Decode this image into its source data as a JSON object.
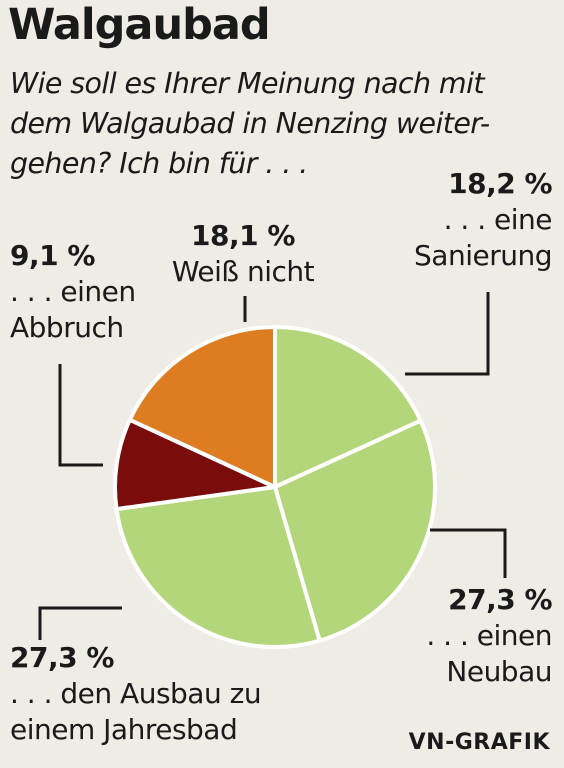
{
  "title": "Walgaubad",
  "question": "Wie soll es Ihrer Meinung nach mit dem Walgaubad in Nenzing weiter-gehen? Ich bin für . . .",
  "credit": "VN-GRAFIK",
  "chart_data": {
    "type": "pie",
    "title": "Walgaubad",
    "subtitle": "Wie soll es Ihrer Meinung nach mit dem Walgaubad in Nenzing weiter-gehen? Ich bin für . . .",
    "slices": [
      {
        "label_line1": ". . . eine",
        "label_line2": "Sanierung",
        "value": 18.2,
        "value_label": "18,2 %",
        "color": "#b3d67a"
      },
      {
        "label_line1": ". . . einen",
        "label_line2": "Neubau",
        "value": 27.3,
        "value_label": "27,3 %",
        "color": "#b3d67a"
      },
      {
        "label_line1": ". . . den Ausbau zu",
        "label_line2": "einem Jahresbad",
        "value": 27.3,
        "value_label": "27,3 %",
        "color": "#b3d67a"
      },
      {
        "label_line1": ". . . einen",
        "label_line2": "Abbruch",
        "value": 9.1,
        "value_label": "9,1 %",
        "color": "#7a0c0c"
      },
      {
        "label_line1": "Weiß nicht",
        "label_line2": "",
        "value": 18.1,
        "value_label": "18,1 %",
        "color": "#de7c22"
      }
    ]
  }
}
